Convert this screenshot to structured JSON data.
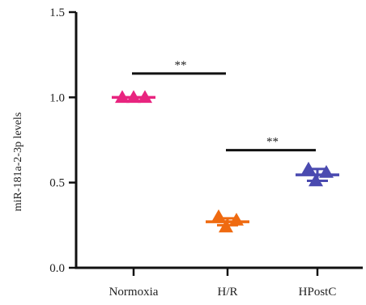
{
  "chart_data": {
    "type": "scatter",
    "ylabel": "miR-181a-2-3p levels",
    "ylim": [
      0,
      1.5
    ],
    "yticks": [
      "0.0",
      "0.5",
      "1.0",
      "1.5"
    ],
    "yticks_values": [
      0,
      0.5,
      1.0,
      1.5
    ],
    "categories": [
      "Normoxia",
      "H/R",
      "HPostC"
    ],
    "groups": [
      {
        "category": "Normoxia",
        "mean": 1.0,
        "sd": 0.0,
        "points": [
          1.0,
          1.0,
          1.0
        ],
        "color": "#e8247f"
      },
      {
        "category": "H/R",
        "mean": 0.27,
        "sd": 0.02,
        "points": [
          0.3,
          0.28,
          0.24
        ],
        "color": "#ef6a10"
      },
      {
        "category": "HPostC",
        "mean": 0.545,
        "sd": 0.035,
        "points": [
          0.58,
          0.56,
          0.51
        ],
        "color": "#4a4ab0"
      }
    ],
    "significance": [
      {
        "from": "Normoxia",
        "to": "H/R",
        "label": "**",
        "y": 1.14
      },
      {
        "from": "H/R",
        "to": "HPostC",
        "label": "**",
        "y": 0.69
      }
    ]
  }
}
